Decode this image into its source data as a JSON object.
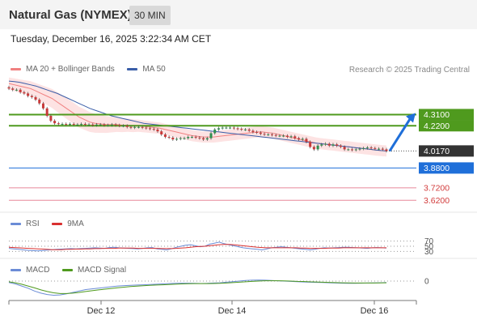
{
  "header": {
    "instrument": "Natural Gas (NYMEX)",
    "timeframe": "30 MIN",
    "timestamp": "Tuesday, December 16, 2025 3:22:34 AM CET"
  },
  "legend": {
    "bollinger_label": "MA 20 + Bollinger Bands",
    "ma50_label": "MA 50",
    "credit": "Research © 2025 Trading Central",
    "rsi_label": "RSI",
    "rsi_ma_label": "9MA",
    "macd_label": "MACD",
    "macd_signal_label": "MACD Signal"
  },
  "colors": {
    "bollinger": "#f08080",
    "bollinger_fill": "#fde3e3",
    "ma50": "#3a5ea8",
    "resistance": "#4f9a1e",
    "pivot": "#1f6fd9",
    "support": "#e8889a",
    "price_tag": "#333333",
    "rsi": "#6b8cd6",
    "rsi_ma": "#d93030",
    "macd": "#6b8cd6",
    "macd_signal": "#4f9a1e"
  },
  "chart_data": [
    {
      "type": "candlestick",
      "name": "price",
      "x_ticks": [
        "Dec 12",
        "Dec 14",
        "Dec 16"
      ],
      "ylim": [
        3.55,
        4.6
      ],
      "levels": [
        {
          "value": 4.31,
          "label": "4.3100",
          "kind": "resistance"
        },
        {
          "value": 4.22,
          "label": "4.2200",
          "kind": "resistance"
        },
        {
          "value": 4.017,
          "label": "4.0170",
          "kind": "last"
        },
        {
          "value": 3.88,
          "label": "3.8800",
          "kind": "pivot"
        },
        {
          "value": 3.72,
          "label": "3.7200",
          "kind": "support"
        },
        {
          "value": 3.62,
          "label": "3.6200",
          "kind": "support"
        }
      ],
      "close": [
        4.52,
        4.51,
        4.51,
        4.49,
        4.48,
        4.46,
        4.45,
        4.43,
        4.4,
        4.36,
        4.3,
        4.26,
        4.24,
        4.235,
        4.235,
        4.23,
        4.235,
        4.23,
        4.23,
        4.235,
        4.23,
        4.23,
        4.225,
        4.23,
        4.23,
        4.225,
        4.225,
        4.23,
        4.225,
        4.22,
        4.22,
        4.21,
        4.205,
        4.21,
        4.21,
        4.205,
        4.2,
        4.195,
        4.19,
        4.175,
        4.15,
        4.13,
        4.125,
        4.11,
        4.115,
        4.12,
        4.12,
        4.13,
        4.13,
        4.125,
        4.12,
        4.11,
        4.12,
        4.16,
        4.19,
        4.2,
        4.205,
        4.205,
        4.205,
        4.2,
        4.195,
        4.19,
        4.19,
        4.18,
        4.17,
        4.165,
        4.155,
        4.15,
        4.15,
        4.145,
        4.14,
        4.14,
        4.14,
        4.13,
        4.135,
        4.12,
        4.11,
        4.115,
        4.09,
        4.05,
        4.03,
        4.06,
        4.07,
        4.075,
        4.06,
        4.07,
        4.06,
        4.05,
        4.03,
        4.03,
        4.025,
        4.03,
        4.035,
        4.04,
        4.045,
        4.04,
        4.035,
        4.035,
        4.03,
        4.017
      ],
      "ma20": [
        4.56,
        4.55,
        4.54,
        4.53,
        4.52,
        4.5,
        4.48,
        4.46,
        4.44,
        4.41,
        4.38,
        4.35,
        4.32,
        4.29,
        4.27,
        4.25,
        4.24,
        4.235,
        4.23,
        4.23,
        4.23,
        4.225,
        4.225,
        4.22,
        4.22,
        4.215,
        4.21,
        4.205,
        4.2,
        4.19,
        4.18,
        4.17,
        4.16,
        4.15,
        4.14,
        4.135,
        4.13,
        4.13,
        4.13,
        4.135,
        4.14,
        4.145,
        4.15,
        4.155,
        4.16,
        4.165,
        4.17,
        4.17,
        4.165,
        4.16,
        4.15,
        4.14,
        4.13,
        4.12,
        4.11,
        4.1,
        4.09,
        4.08,
        4.075,
        4.07,
        4.065,
        4.06,
        4.055,
        4.05,
        4.045,
        4.04,
        4.035,
        4.03,
        4.025,
        4.02,
        4.017
      ],
      "ma50": [
        4.58,
        4.575,
        4.57,
        4.56,
        4.55,
        4.54,
        4.525,
        4.51,
        4.495,
        4.48,
        4.46,
        4.44,
        4.42,
        4.4,
        4.38,
        4.36,
        4.345,
        4.33,
        4.315,
        4.3,
        4.29,
        4.28,
        4.27,
        4.26,
        4.25,
        4.24,
        4.235,
        4.23,
        4.225,
        4.22,
        4.215,
        4.21,
        4.205,
        4.2,
        4.195,
        4.19,
        4.185,
        4.18,
        4.175,
        4.17,
        4.165,
        4.16,
        4.155,
        4.15,
        4.145,
        4.14,
        4.135,
        4.13,
        4.125,
        4.12,
        4.115,
        4.11,
        4.105,
        4.1,
        4.095,
        4.09,
        4.085,
        4.08,
        4.075,
        4.07,
        4.065,
        4.06,
        4.055,
        4.05,
        4.045,
        4.04,
        4.035,
        4.03,
        4.025,
        4.02,
        4.017
      ],
      "projection": {
        "from": 4.017,
        "to": 4.31
      }
    },
    {
      "type": "line",
      "name": "RSI",
      "y_ticks": [
        "70",
        "50",
        "30"
      ],
      "ylim": [
        0,
        100
      ],
      "series": [
        {
          "name": "RSI",
          "values": [
            42,
            40,
            38,
            36,
            34,
            33,
            32,
            33,
            35,
            37,
            38,
            39,
            40,
            41,
            40,
            41,
            42,
            43,
            44,
            43,
            42,
            45,
            46,
            44,
            43,
            42,
            41,
            40,
            42,
            44,
            45,
            40,
            38,
            36,
            40,
            46,
            50,
            54,
            56,
            52,
            48,
            50,
            58,
            62,
            66,
            60,
            56,
            52,
            48,
            44,
            42,
            40,
            38,
            36,
            40,
            44,
            46,
            48,
            46,
            44,
            42,
            40,
            38,
            36,
            38,
            42,
            44,
            43,
            44,
            45,
            46,
            46,
            45,
            44,
            43,
            42,
            44,
            45,
            44,
            43
          ]
        },
        {
          "name": "9MA",
          "values": [
            46,
            45,
            44,
            43,
            42,
            41,
            40,
            39,
            38,
            37,
            37,
            37,
            38,
            38,
            39,
            39,
            40,
            40,
            41,
            41,
            42,
            42,
            42,
            43,
            43,
            43,
            43,
            42,
            42,
            42,
            42,
            42,
            41,
            41,
            41,
            42,
            43,
            44,
            46,
            48,
            49,
            50,
            52,
            54,
            56,
            57,
            57,
            56,
            54,
            52,
            50,
            48,
            46,
            45,
            44,
            44,
            44,
            44,
            44,
            44,
            44,
            43,
            43,
            42,
            42,
            42,
            42,
            43,
            43,
            43,
            44,
            44,
            44,
            44,
            44,
            44,
            44,
            44,
            44,
            44
          ]
        }
      ]
    },
    {
      "type": "line",
      "name": "MACD",
      "y_ticks": [
        "0"
      ],
      "ylim": [
        -0.12,
        0.04
      ],
      "series": [
        {
          "name": "MACD",
          "values": [
            -0.01,
            -0.02,
            -0.035,
            -0.05,
            -0.07,
            -0.085,
            -0.095,
            -0.1,
            -0.098,
            -0.09,
            -0.08,
            -0.07,
            -0.06,
            -0.055,
            -0.05,
            -0.045,
            -0.04,
            -0.035,
            -0.032,
            -0.03,
            -0.028,
            -0.026,
            -0.024,
            -0.022,
            -0.02,
            -0.018,
            -0.016,
            -0.015,
            -0.015,
            -0.016,
            -0.017,
            -0.016,
            -0.014,
            -0.012,
            -0.008,
            -0.004,
            0.0,
            0.004,
            0.006,
            0.007,
            0.006,
            0.004,
            0.002,
            0.0,
            -0.002,
            -0.004,
            -0.006,
            -0.008,
            -0.009,
            -0.01,
            -0.012,
            -0.014,
            -0.015,
            -0.016,
            -0.016,
            -0.015,
            -0.014,
            -0.013,
            -0.012,
            -0.01
          ]
        },
        {
          "name": "MACD Signal",
          "values": [
            -0.005,
            -0.012,
            -0.022,
            -0.035,
            -0.048,
            -0.062,
            -0.074,
            -0.083,
            -0.088,
            -0.088,
            -0.085,
            -0.08,
            -0.074,
            -0.068,
            -0.062,
            -0.057,
            -0.052,
            -0.047,
            -0.043,
            -0.039,
            -0.036,
            -0.033,
            -0.03,
            -0.028,
            -0.026,
            -0.024,
            -0.022,
            -0.02,
            -0.019,
            -0.018,
            -0.018,
            -0.018,
            -0.017,
            -0.016,
            -0.014,
            -0.011,
            -0.008,
            -0.005,
            -0.002,
            0.0,
            0.002,
            0.002,
            0.002,
            0.001,
            0.0,
            -0.002,
            -0.003,
            -0.005,
            -0.006,
            -0.008,
            -0.009,
            -0.011,
            -0.012,
            -0.013,
            -0.014,
            -0.014,
            -0.014,
            -0.014,
            -0.013,
            -0.012
          ]
        }
      ]
    }
  ]
}
